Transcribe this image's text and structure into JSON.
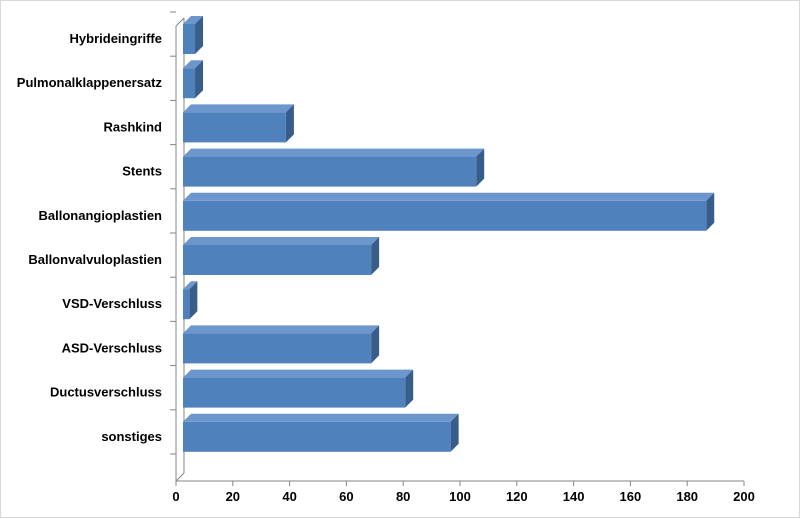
{
  "colors": {
    "bar_front": "#4f81bd",
    "bar_top": "#6d97cc",
    "bar_side": "#385d8a",
    "axis": "#868686"
  },
  "chart_data": {
    "type": "bar",
    "orientation": "horizontal",
    "style": "3d",
    "categories": [
      "Hybrideingriffe",
      "Pulmonalklappenersatz",
      "Rashkind",
      "Stents",
      "Ballonangioplastien",
      "Ballonvalvuloplastien",
      "VSD-Verschluss",
      "ASD-Verschluss",
      "Ductusverschluss",
      "sonstiges"
    ],
    "values": [
      6,
      6,
      38,
      105,
      186,
      68,
      4,
      68,
      80,
      96
    ],
    "xlim": [
      0,
      200
    ],
    "xticks": [
      0,
      20,
      40,
      60,
      80,
      100,
      120,
      140,
      160,
      180,
      200
    ],
    "xtick_labels": [
      "0",
      "20",
      "40",
      "60",
      "80",
      "100",
      "120",
      "140",
      "160",
      "180",
      "200"
    ],
    "grid": false,
    "legend": "none"
  }
}
